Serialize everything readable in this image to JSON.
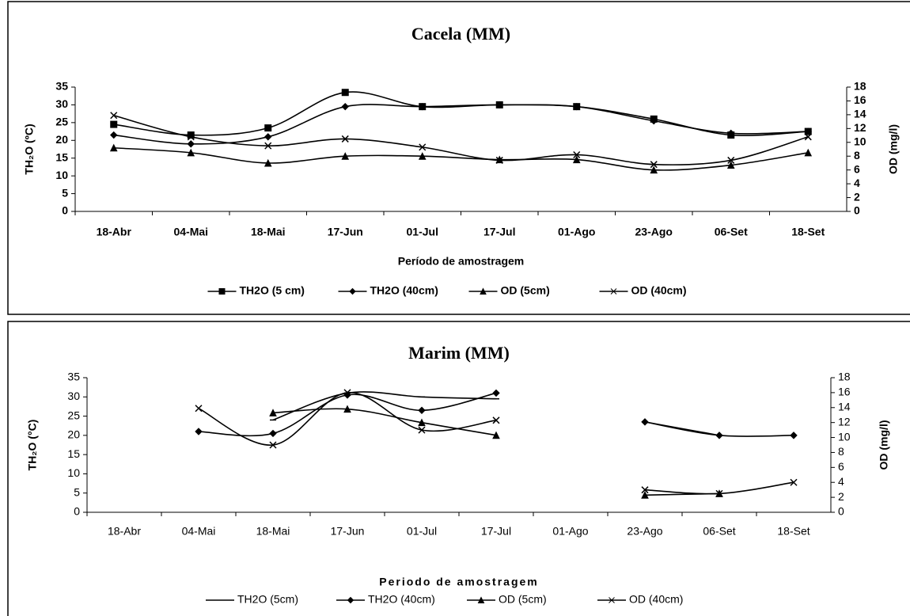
{
  "chart_data": [
    {
      "type": "line",
      "title": "Cacela (MM)",
      "xlabel": "Período de amostragem",
      "ylabel": "TH₂O (ºC)",
      "y2label": "OD (mg/l)",
      "categories": [
        "18-Abr",
        "04-Mai",
        "18-Mai",
        "17-Jun",
        "01-Jul",
        "17-Jul",
        "01-Ago",
        "23-Ago",
        "06-Set",
        "18-Set"
      ],
      "ylim": [
        0,
        35
      ],
      "yticks": [
        0,
        5,
        10,
        15,
        20,
        25,
        30,
        35
      ],
      "y2lim": [
        0,
        18
      ],
      "y2ticks": [
        0,
        2,
        4,
        6,
        8,
        10,
        12,
        14,
        16,
        18
      ],
      "series": [
        {
          "name": "TH2O (5 cm)",
          "color": "#000000",
          "marker": "square",
          "values": [
            24.5,
            21.5,
            23.5,
            33.5,
            29.5,
            30,
            29.5,
            26,
            21.5,
            22.5
          ]
        },
        {
          "name": "TH2O (40cm)",
          "color": "#000000",
          "marker": "diamond",
          "values": [
            21.5,
            19,
            21,
            29.5,
            29.5,
            30,
            29.5,
            25.5,
            22,
            22.5
          ]
        },
        {
          "name": "OD (5cm)",
          "color": "#000000",
          "marker": "triangle",
          "axis": "y2",
          "values": [
            9.2,
            8.5,
            7,
            8,
            8,
            7.5,
            7.5,
            6,
            6.7,
            8.5
          ]
        },
        {
          "name": "OD (40cm)",
          "color": "#000000",
          "marker": "x",
          "axis": "y2",
          "values": [
            13.9,
            10.8,
            9.5,
            10.5,
            9.3,
            7.4,
            8.2,
            6.8,
            7.4,
            10.8
          ]
        }
      ]
    },
    {
      "type": "line",
      "title": "Marim (MM)",
      "xlabel": "Periodo de amostragem",
      "ylabel": "TH₂O (°C)",
      "y2label": "OD (mg/l)",
      "categories": [
        "18-Abr",
        "04-Mai",
        "18-Mai",
        "17-Jun",
        "01-Jul",
        "17-Jul",
        "01-Ago",
        "23-Ago",
        "06-Set",
        "18-Set"
      ],
      "ylim": [
        0,
        35
      ],
      "yticks": [
        0,
        5,
        10,
        15,
        20,
        25,
        30,
        35
      ],
      "y2lim": [
        0,
        18
      ],
      "y2ticks": [
        0,
        2,
        4,
        6,
        8,
        10,
        12,
        14,
        16,
        18
      ],
      "series": [
        {
          "name": "TH2O (5cm)",
          "color": "#000000",
          "marker": "dash",
          "values": [
            null,
            null,
            24,
            31,
            30,
            29.5,
            null,
            23.5,
            20,
            null
          ]
        },
        {
          "name": "TH2O (40cm)",
          "color": "#000000",
          "marker": "diamond",
          "values": [
            null,
            21,
            20.5,
            30.5,
            26.5,
            31,
            null,
            23.5,
            20,
            20
          ]
        },
        {
          "name": "OD (5cm)",
          "color": "#000000",
          "marker": "triangle",
          "axis": "y2",
          "values": [
            null,
            null,
            13.3,
            13.8,
            12,
            10.3,
            null,
            2.3,
            2.5,
            null
          ]
        },
        {
          "name": "OD (40cm)",
          "color": "#000000",
          "marker": "x",
          "axis": "y2",
          "values": [
            null,
            13.9,
            9,
            16,
            11,
            12.3,
            null,
            3,
            2.5,
            4
          ]
        }
      ]
    }
  ]
}
